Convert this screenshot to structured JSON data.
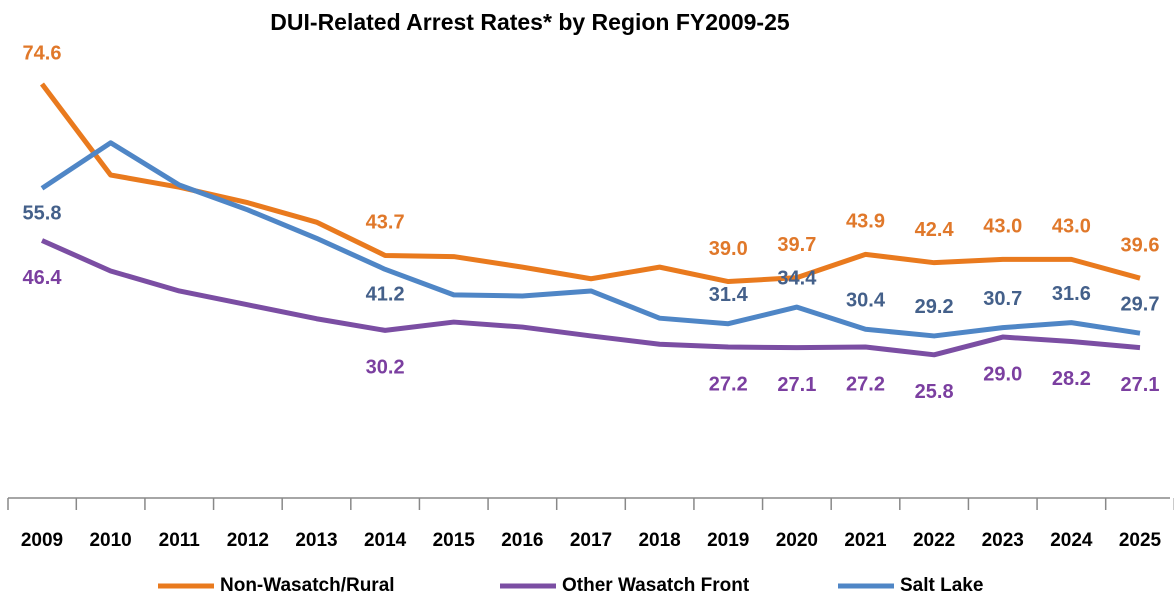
{
  "chart_data": {
    "type": "line",
    "title": "DUI-Related Arrest Rates* by Region FY2009-25",
    "categories": [
      "2009",
      "2010",
      "2011",
      "2012",
      "2013",
      "2014",
      "2015",
      "2016",
      "2017",
      "2018",
      "2019",
      "2020",
      "2021",
      "2022",
      "2023",
      "2024",
      "2025"
    ],
    "ylim": [
      0,
      80
    ],
    "legend": "bottom",
    "series": [
      {
        "name": "Non-Wasatch/Rural",
        "color": "#E97A1E",
        "values": [
          74.6,
          58.2,
          56.0,
          53.2,
          49.7,
          43.7,
          43.5,
          41.6,
          39.5,
          41.6,
          39.0,
          39.7,
          43.9,
          42.4,
          43.0,
          43.0,
          39.6
        ],
        "value_labels": [
          "74.6",
          null,
          null,
          null,
          null,
          "43.7",
          null,
          null,
          null,
          null,
          "39.0",
          "39.7",
          "43.9",
          "42.4",
          "43.0",
          "43.0",
          "39.6"
        ]
      },
      {
        "name": "Other Wasatch Front",
        "color": "#7B4EA3",
        "values": [
          46.4,
          40.9,
          37.3,
          34.8,
          32.3,
          30.2,
          31.7,
          30.8,
          29.2,
          27.7,
          27.2,
          27.1,
          27.2,
          25.8,
          29.0,
          28.2,
          27.1
        ],
        "value_labels": [
          "46.4",
          null,
          null,
          null,
          null,
          "30.2",
          null,
          null,
          null,
          null,
          "27.2",
          "27.1",
          "27.2",
          "25.8",
          "29.0",
          "28.2",
          "27.1"
        ]
      },
      {
        "name": "Salt Lake",
        "color": "#4F86C6",
        "values": [
          55.8,
          64.0,
          56.4,
          51.9,
          46.8,
          41.2,
          36.6,
          36.4,
          37.3,
          32.4,
          31.4,
          34.4,
          30.4,
          29.2,
          30.7,
          31.6,
          29.7
        ],
        "value_labels": [
          "55.8",
          null,
          null,
          null,
          null,
          "41.2",
          null,
          null,
          null,
          null,
          "31.4",
          "34.4",
          "30.4",
          "29.2",
          "30.7",
          "31.6",
          "29.7"
        ]
      }
    ]
  }
}
